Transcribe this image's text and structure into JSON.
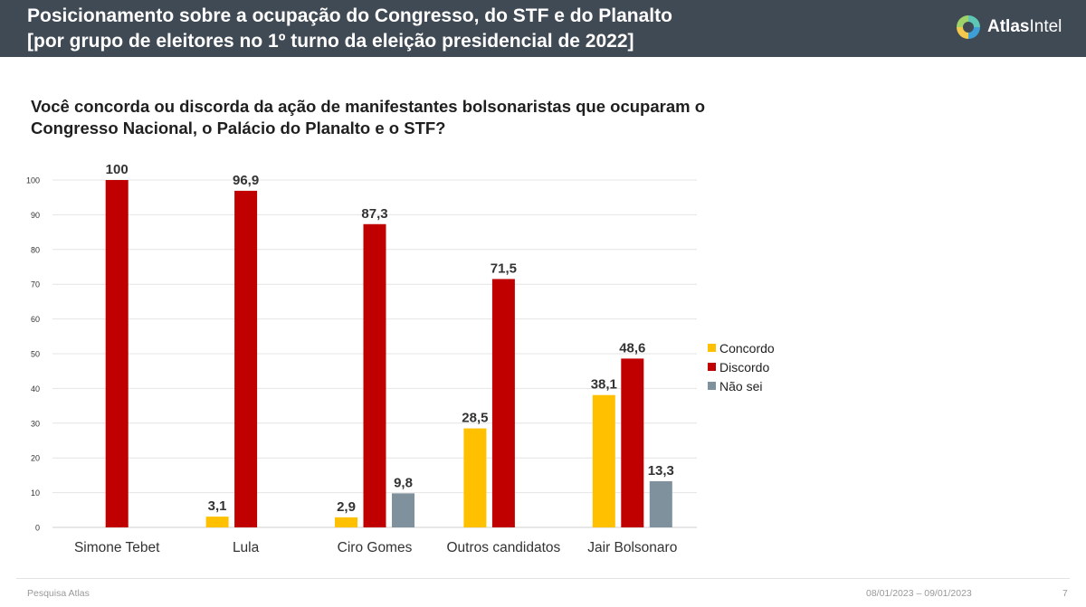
{
  "header": {
    "title_line1": "Posicionamento sobre a ocupação do Congresso, do STF e do Planalto",
    "title_line2": "[por grupo de eleitores no 1º turno da eleição presidencial de 2022]",
    "brand_part1": "Atlas",
    "brand_part2": "Intel"
  },
  "colors": {
    "header_bg": "#404a55",
    "concordo": "#ffc000",
    "discordo": "#c00000",
    "nao_sei": "#7f919c"
  },
  "chart_data": {
    "type": "bar",
    "title": "Você concorda ou discorda da ação de manifestantes bolsonaristas que ocuparam o Congresso Nacional, o Palácio do Planalto e o STF?",
    "xlabel": "",
    "ylabel": "",
    "ylim": [
      0,
      100
    ],
    "yticks": [
      "0",
      "10",
      "20",
      "30",
      "40",
      "50",
      "60",
      "70",
      "80",
      "90",
      "100"
    ],
    "grid": true,
    "legend_position": "right",
    "categories": [
      "Simone Tebet",
      "Lula",
      "Ciro Gomes",
      "Outros candidatos",
      "Jair Bolsonaro"
    ],
    "series": [
      {
        "name": "Concordo",
        "color": "#ffc000",
        "values": [
          null,
          3.1,
          2.9,
          28.5,
          38.1
        ],
        "labels": [
          "",
          "3,1",
          "2,9",
          "28,5",
          "38,1"
        ]
      },
      {
        "name": "Discordo",
        "color": "#c00000",
        "values": [
          100,
          96.9,
          87.3,
          71.5,
          48.6
        ],
        "labels": [
          "100",
          "96,9",
          "87,3",
          "71,5",
          "48,6"
        ]
      },
      {
        "name": "Não sei",
        "color": "#7f919c",
        "values": [
          null,
          null,
          9.8,
          null,
          13.3
        ],
        "labels": [
          "",
          "",
          "9,8",
          "",
          "13,3"
        ]
      }
    ]
  },
  "footer": {
    "source": "Pesquisa Atlas",
    "dates": "08/01/2023 – 09/01/2023",
    "page": "7"
  }
}
